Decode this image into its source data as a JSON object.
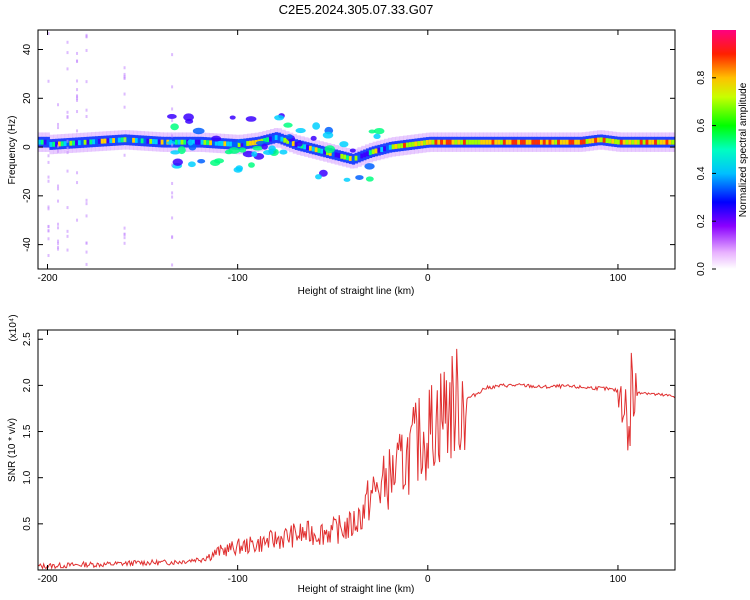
{
  "title": "C2E5.2024.305.07.33.G07",
  "chart_data": [
    {
      "type": "heatmap",
      "xlabel": "Height of straight line (km)",
      "ylabel": "Frequency (Hz)",
      "xlim": [
        -205,
        130
      ],
      "ylim": [
        -50,
        48
      ],
      "xticks": [
        -200,
        -100,
        0,
        100
      ],
      "yticks": [
        -40,
        -20,
        0,
        20,
        40
      ],
      "colorbar": {
        "label": "Normalized spectral amplitude",
        "range": [
          0,
          1
        ],
        "ticks": [
          "0.0",
          "0.2",
          "0.4",
          "0.6",
          "0.8"
        ],
        "colormap": [
          "#ffffff",
          "#ff00ff",
          "#0000ff",
          "#00ffff",
          "#00ff00",
          "#ffff00",
          "#ff0000",
          "#ff00ff"
        ]
      },
      "description_points": [
        {
          "x": -200,
          "f": 1
        },
        {
          "x": -180,
          "f": 2
        },
        {
          "x": -160,
          "f": 3
        },
        {
          "x": -140,
          "f": 2
        },
        {
          "x": -120,
          "f": 2
        },
        {
          "x": -100,
          "f": 1
        },
        {
          "x": -90,
          "f": 2
        },
        {
          "x": -80,
          "f": 4
        },
        {
          "x": -70,
          "f": 1
        },
        {
          "x": -60,
          "f": -1
        },
        {
          "x": -50,
          "f": -3
        },
        {
          "x": -40,
          "f": -5
        },
        {
          "x": -30,
          "f": -2
        },
        {
          "x": -20,
          "f": 0
        },
        {
          "x": -10,
          "f": 1
        },
        {
          "x": 0,
          "f": 2
        },
        {
          "x": 20,
          "f": 2
        },
        {
          "x": 40,
          "f": 2
        },
        {
          "x": 60,
          "f": 2
        },
        {
          "x": 80,
          "f": 2
        },
        {
          "x": 90,
          "f": 3
        },
        {
          "x": 100,
          "f": 2
        },
        {
          "x": 110,
          "f": 2
        },
        {
          "x": 130,
          "f": 2
        }
      ]
    },
    {
      "type": "line",
      "xlabel": "Height of straight line (km)",
      "ylabel": "SNR (10 * v/v)",
      "yscale_label": "(x10⁴)",
      "xlim": [
        -205,
        130
      ],
      "ylim": [
        0,
        2.6
      ],
      "xticks": [
        -200,
        -100,
        0,
        100
      ],
      "yticks": [
        "0.5",
        "1.0",
        "1.5",
        "2.0",
        "2.5"
      ],
      "series": [
        {
          "color": "#e03030",
          "x": [
            -205,
            -190,
            -180,
            -170,
            -160,
            -150,
            -140,
            -130,
            -120,
            -115,
            -110,
            -100,
            -90,
            -80,
            -70,
            -60,
            -50,
            -40,
            -35,
            -30,
            -25,
            -20,
            -15,
            -10,
            -5,
            0,
            5,
            10,
            15,
            20,
            25,
            30,
            40,
            50,
            60,
            70,
            80,
            90,
            95,
            100,
            103,
            105,
            106,
            107,
            108,
            110,
            115,
            120,
            130
          ],
          "y": [
            0.04,
            0.05,
            0.06,
            0.06,
            0.07,
            0.08,
            0.08,
            0.09,
            0.12,
            0.15,
            0.2,
            0.25,
            0.28,
            0.33,
            0.38,
            0.4,
            0.42,
            0.48,
            0.6,
            0.8,
            0.9,
            1.0,
            1.1,
            1.25,
            1.4,
            1.5,
            1.65,
            1.75,
            1.8,
            1.85,
            1.9,
            1.97,
            2.0,
            2.0,
            1.98,
            1.99,
            1.98,
            1.97,
            1.96,
            1.94,
            1.9,
            1.6,
            1.2,
            2.2,
            1.8,
            1.93,
            1.92,
            1.9,
            1.88
          ]
        }
      ]
    }
  ]
}
